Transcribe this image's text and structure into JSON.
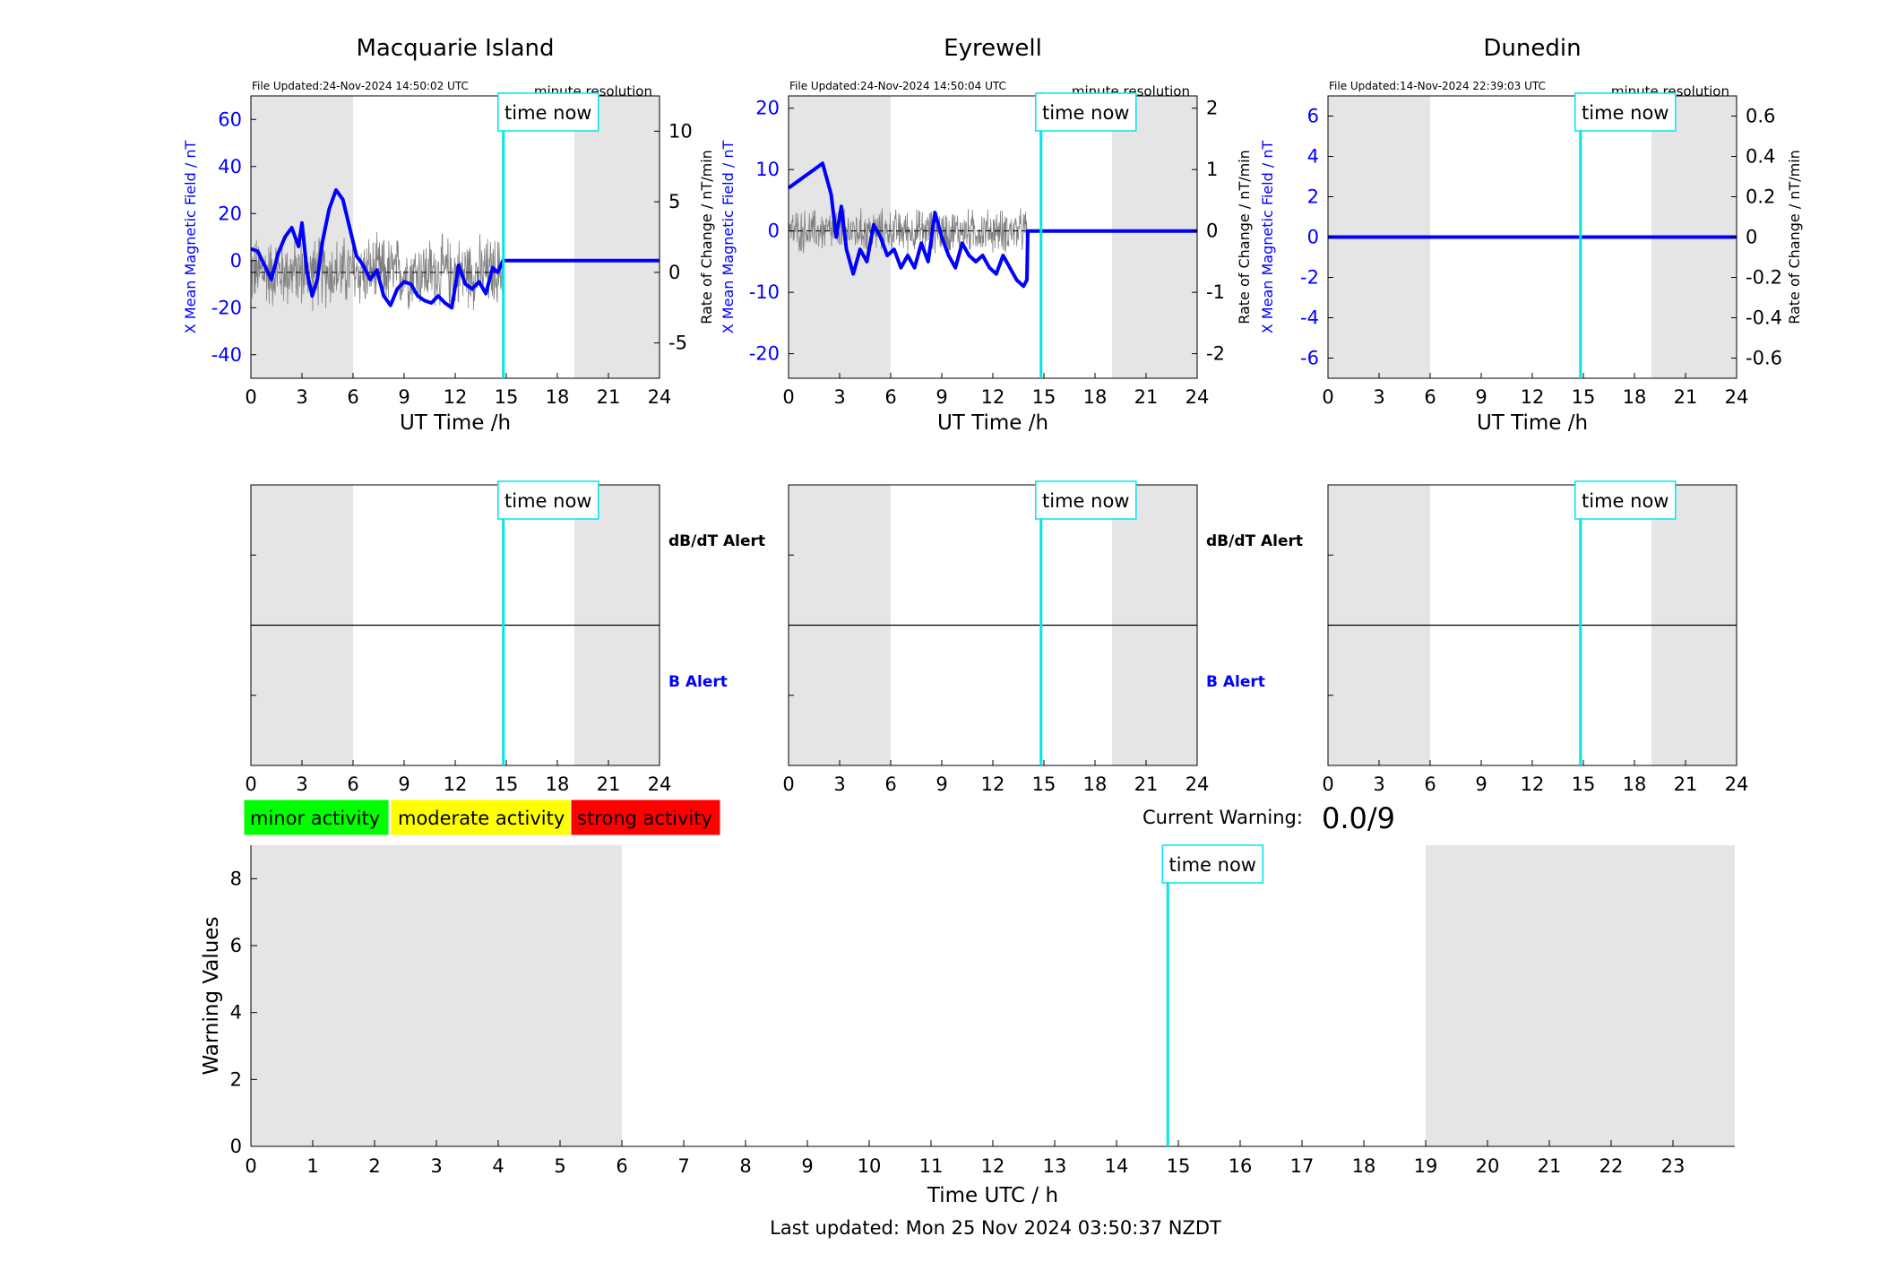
{
  "colors": {
    "b_line": "#0000ff",
    "rate_line": "#808080",
    "now_line": "#00e5ee",
    "shade": "#e5e5e5",
    "minor": "#00ff00",
    "moderate": "#ffff00",
    "strong": "#ff0000"
  },
  "time_now_label": "time now",
  "time_now_hour": 14.83,
  "stations": [
    {
      "title": "Macquarie Island",
      "file_updated": "File Updated:24-Nov-2024 14:50:02 UTC",
      "resolution": "minute resolution",
      "left_ylabel": "X Mean Magnetic Field / nT",
      "right_ylabel": "Rate of Change / nT/min",
      "xlabel": "UT Time /h",
      "left_ylim": [
        -50,
        70
      ],
      "left_yticks": [
        "-40",
        "-20",
        "0",
        "20",
        "40",
        "60"
      ],
      "left_ytick_values": [
        -40,
        -20,
        0,
        20,
        40,
        60
      ],
      "right_ylim": [
        -7.5,
        12.5
      ],
      "right_yticks": [
        "-5",
        "0",
        "5",
        "10"
      ],
      "right_ytick_values": [
        -5,
        0,
        5,
        10
      ],
      "xticks": [
        "0",
        "3",
        "6",
        "9",
        "12",
        "15",
        "18",
        "21",
        "24"
      ],
      "data_end_hour": 14.8,
      "b_series": [
        [
          0,
          5
        ],
        [
          0.4,
          4
        ],
        [
          0.8,
          -2
        ],
        [
          1.2,
          -8
        ],
        [
          1.6,
          3
        ],
        [
          2,
          10
        ],
        [
          2.4,
          14
        ],
        [
          2.8,
          6
        ],
        [
          3,
          16
        ],
        [
          3.3,
          -5
        ],
        [
          3.6,
          -15
        ],
        [
          3.9,
          -8
        ],
        [
          4.2,
          8
        ],
        [
          4.6,
          22
        ],
        [
          5,
          30
        ],
        [
          5.4,
          26
        ],
        [
          5.8,
          14
        ],
        [
          6.2,
          2
        ],
        [
          6.6,
          -2
        ],
        [
          7,
          -8
        ],
        [
          7.4,
          -4
        ],
        [
          7.8,
          -15
        ],
        [
          8.2,
          -19
        ],
        [
          8.6,
          -12
        ],
        [
          9,
          -9
        ],
        [
          9.4,
          -10
        ],
        [
          9.8,
          -15
        ],
        [
          10.2,
          -17
        ],
        [
          10.6,
          -18
        ],
        [
          11,
          -15
        ],
        [
          11.4,
          -18
        ],
        [
          11.8,
          -20
        ],
        [
          12.2,
          -2
        ],
        [
          12.6,
          -10
        ],
        [
          13,
          -12
        ],
        [
          13.4,
          -9
        ],
        [
          13.8,
          -14
        ],
        [
          14.2,
          -3
        ],
        [
          14.5,
          -5
        ],
        [
          14.8,
          0
        ],
        [
          24,
          0
        ]
      ],
      "rate_amplitude": 2.5,
      "gray_ranges": [
        [
          0,
          6
        ],
        [
          19,
          24
        ]
      ]
    },
    {
      "title": "Eyrewell",
      "file_updated": "File Updated:24-Nov-2024 14:50:04 UTC",
      "resolution": "minute resolution",
      "left_ylabel": "X Mean Magnetic Field / nT",
      "right_ylabel": "Rate of Change / nT/min",
      "xlabel": "UT Time /h",
      "left_ylim": [
        -24,
        22
      ],
      "left_yticks": [
        "-20",
        "-10",
        "0",
        "10",
        "20"
      ],
      "left_ytick_values": [
        -20,
        -10,
        0,
        10,
        20
      ],
      "right_ylim": [
        -2.4,
        2.2
      ],
      "right_yticks": [
        "-2",
        "-1",
        "0",
        "1",
        "2"
      ],
      "right_ytick_values": [
        -2,
        -1,
        0,
        1,
        2
      ],
      "xticks": [
        "0",
        "3",
        "6",
        "9",
        "12",
        "15",
        "18",
        "21",
        "24"
      ],
      "data_end_hour": 14,
      "b_series": [
        [
          0,
          7
        ],
        [
          0.5,
          8
        ],
        [
          1,
          9
        ],
        [
          1.5,
          10
        ],
        [
          2,
          11
        ],
        [
          2.5,
          6
        ],
        [
          2.8,
          -1
        ],
        [
          3.1,
          4
        ],
        [
          3.4,
          -3
        ],
        [
          3.8,
          -7
        ],
        [
          4.2,
          -3
        ],
        [
          4.6,
          -5
        ],
        [
          5,
          1
        ],
        [
          5.4,
          -1
        ],
        [
          5.8,
          -4
        ],
        [
          6.2,
          -3
        ],
        [
          6.6,
          -6
        ],
        [
          7,
          -4
        ],
        [
          7.4,
          -6
        ],
        [
          7.8,
          -2
        ],
        [
          8.2,
          -5
        ],
        [
          8.6,
          3
        ],
        [
          9,
          -1
        ],
        [
          9.4,
          -4
        ],
        [
          9.8,
          -6
        ],
        [
          10.2,
          -2
        ],
        [
          10.6,
          -4
        ],
        [
          11,
          -5
        ],
        [
          11.4,
          -4
        ],
        [
          11.8,
          -6
        ],
        [
          12.2,
          -7
        ],
        [
          12.6,
          -4
        ],
        [
          13,
          -6
        ],
        [
          13.4,
          -8
        ],
        [
          13.8,
          -9
        ],
        [
          14,
          -8
        ],
        [
          14.05,
          0
        ],
        [
          24,
          0
        ]
      ],
      "rate_amplitude": 0.35,
      "gray_ranges": [
        [
          0,
          6
        ],
        [
          19,
          24
        ]
      ]
    },
    {
      "title": "Dunedin",
      "file_updated": "File Updated:14-Nov-2024 22:39:03 UTC",
      "resolution": "minute resolution",
      "left_ylabel": "X Mean Magnetic Field / nT",
      "right_ylabel": "Rate of Change / nT/min",
      "xlabel": "UT Time /h",
      "left_ylim": [
        -7,
        7
      ],
      "left_yticks": [
        "-6",
        "-4",
        "-2",
        "0",
        "2",
        "4",
        "6"
      ],
      "left_ytick_values": [
        -6,
        -4,
        -2,
        0,
        2,
        4,
        6
      ],
      "right_ylim": [
        -0.7,
        0.7
      ],
      "right_yticks": [
        "-0.6",
        "-0.4",
        "-0.2",
        "0",
        "0.2",
        "0.4",
        "0.6"
      ],
      "right_ytick_values": [
        -0.6,
        -0.4,
        -0.2,
        0,
        0.2,
        0.4,
        0.6
      ],
      "xticks": [
        "0",
        "3",
        "6",
        "9",
        "12",
        "15",
        "18",
        "21",
        "24"
      ],
      "data_end_hour": 0,
      "b_series": [
        [
          0,
          0
        ],
        [
          24,
          0
        ]
      ],
      "rate_amplitude": 0,
      "gray_ranges": [
        [
          0,
          6
        ],
        [
          19,
          24
        ]
      ]
    }
  ],
  "alert_panels": {
    "dbdt_label": "dB/dT Alert",
    "b_label": "B Alert",
    "xticks": [
      "0",
      "3",
      "6",
      "9",
      "12",
      "15",
      "18",
      "21",
      "24"
    ]
  },
  "legend": {
    "minor": "minor activity",
    "moderate": "moderate activity",
    "strong": "strong activity"
  },
  "current_warning": {
    "label": "Current Warning:",
    "value": "0.0/9"
  },
  "chart_data": {
    "type": "bar",
    "title": "",
    "xlabel": "Time UTC / h",
    "ylabel": "Warning Values",
    "xlim": [
      0,
      24
    ],
    "ylim": [
      0,
      9
    ],
    "xticks": [
      "0",
      "1",
      "2",
      "3",
      "4",
      "5",
      "6",
      "7",
      "8",
      "9",
      "10",
      "11",
      "12",
      "13",
      "14",
      "15",
      "16",
      "17",
      "18",
      "19",
      "20",
      "21",
      "22",
      "23"
    ],
    "yticks": [
      "0",
      "2",
      "4",
      "6",
      "8"
    ],
    "ytick_values": [
      0,
      2,
      4,
      6,
      8
    ],
    "values": [],
    "gray_ranges": [
      [
        0,
        6
      ],
      [
        19,
        24
      ]
    ]
  },
  "footer": "Last updated: Mon 25 Nov 2024 03:50:37 NZDT"
}
